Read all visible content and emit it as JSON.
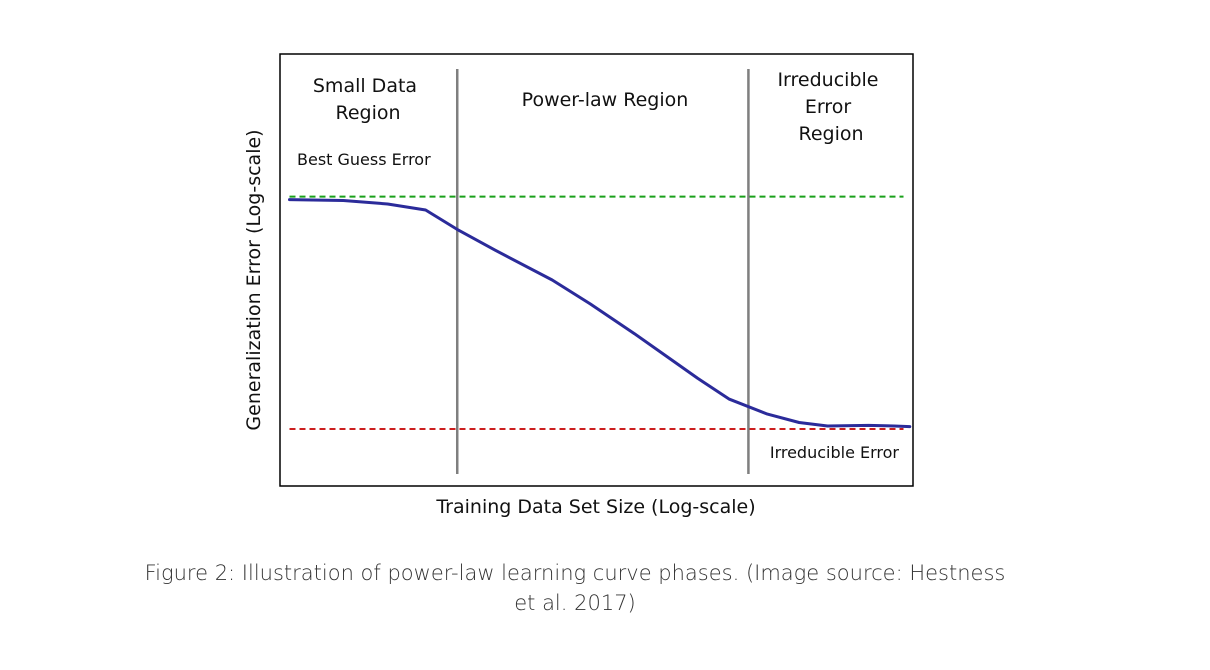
{
  "chart_data": {
    "type": "line",
    "xlabel": "Training Data Set Size (Log-scale)",
    "ylabel": "Generalization Error (Log-scale)",
    "xlim": [
      0,
      100
    ],
    "ylim": [
      0,
      100
    ],
    "grid": false,
    "x_ticks_shown": false,
    "y_ticks_shown": false,
    "colors": {
      "curve": "#2b2b9a",
      "best_guess_line": "#1aa01a",
      "irreducible_line": "#cc1f1f",
      "region_divider": "#7f7f7f"
    },
    "series": [
      {
        "x": [
          1.5,
          10,
          17,
          23,
          28,
          34,
          43,
          49,
          56,
          61,
          66,
          71,
          77,
          82,
          86.5,
          93,
          97,
          99.5
        ],
        "y": [
          78,
          77.7,
          76.5,
          74.5,
          68,
          61,
          51,
          43,
          33,
          25.5,
          18,
          11,
          6,
          3.2,
          2.0,
          2.2,
          2.0,
          1.8
        ]
      }
    ],
    "horizontal_lines": [
      {
        "y": 79,
        "label": "Best Guess Error",
        "style": "dashed"
      },
      {
        "y": 1.0,
        "label": "Irreducible Error",
        "style": "dashed"
      }
    ],
    "vertical_dividers": [
      28,
      74
    ],
    "regions": [
      {
        "label_lines": [
          "Small Data",
          "Region"
        ]
      },
      {
        "label_lines": [
          "Power-law Region"
        ]
      },
      {
        "label_lines": [
          "Irreducible",
          "Error",
          "Region"
        ]
      }
    ]
  },
  "caption": {
    "line1": "Figure 2: Illustration of power-law learning curve phases. (Image source: Hestness",
    "line2": "et al. 2017)"
  }
}
